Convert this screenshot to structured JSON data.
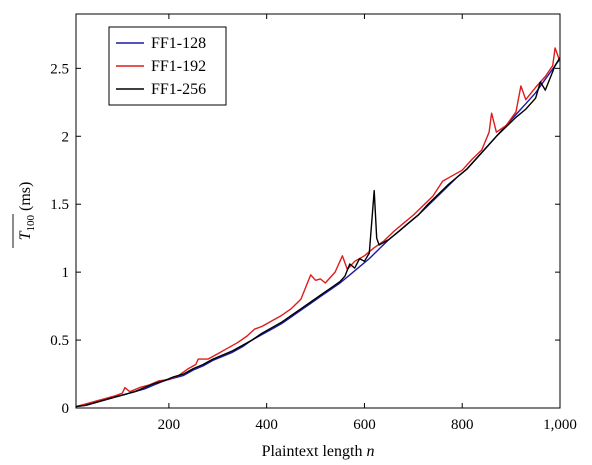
{
  "chart_data": {
    "type": "line",
    "xlabel": "Plaintext length",
    "xlabel_var": "n",
    "ylabel_main": "T",
    "ylabel_sub": "100",
    "ylabel_unit": "(ms)",
    "xlim": [
      10,
      1000
    ],
    "ylim": [
      0,
      2.9
    ],
    "xticks": [
      200,
      400,
      600,
      800,
      1000
    ],
    "xtick_labels": [
      "200",
      "400",
      "600",
      "800",
      "1,000"
    ],
    "yticks": [
      0,
      0.5,
      1,
      1.5,
      2,
      2.5
    ],
    "ytick_labels": [
      "0",
      "0.5",
      "1",
      "1.5",
      "2",
      "2.5"
    ],
    "legend_position": "top-left",
    "series": [
      {
        "name": "FF1-128",
        "color": "#1a1aa6",
        "points": [
          [
            10,
            0.01
          ],
          [
            30,
            0.02
          ],
          [
            50,
            0.04
          ],
          [
            70,
            0.06
          ],
          [
            90,
            0.08
          ],
          [
            110,
            0.1
          ],
          [
            130,
            0.12
          ],
          [
            150,
            0.14
          ],
          [
            170,
            0.17
          ],
          [
            190,
            0.2
          ],
          [
            210,
            0.22
          ],
          [
            230,
            0.24
          ],
          [
            250,
            0.28
          ],
          [
            270,
            0.31
          ],
          [
            290,
            0.35
          ],
          [
            310,
            0.38
          ],
          [
            330,
            0.41
          ],
          [
            350,
            0.45
          ],
          [
            370,
            0.5
          ],
          [
            390,
            0.54
          ],
          [
            410,
            0.58
          ],
          [
            430,
            0.62
          ],
          [
            450,
            0.67
          ],
          [
            470,
            0.72
          ],
          [
            490,
            0.77
          ],
          [
            510,
            0.82
          ],
          [
            530,
            0.87
          ],
          [
            550,
            0.92
          ],
          [
            570,
            0.98
          ],
          [
            590,
            1.04
          ],
          [
            610,
            1.1
          ],
          [
            630,
            1.17
          ],
          [
            650,
            1.24
          ],
          [
            670,
            1.3
          ],
          [
            690,
            1.36
          ],
          [
            710,
            1.42
          ],
          [
            730,
            1.49
          ],
          [
            750,
            1.56
          ],
          [
            770,
            1.63
          ],
          [
            790,
            1.7
          ],
          [
            810,
            1.76
          ],
          [
            830,
            1.84
          ],
          [
            850,
            1.92
          ],
          [
            870,
            2.0
          ],
          [
            890,
            2.08
          ],
          [
            910,
            2.16
          ],
          [
            930,
            2.24
          ],
          [
            950,
            2.32
          ],
          [
            970,
            2.42
          ],
          [
            990,
            2.52
          ],
          [
            1000,
            2.57
          ]
        ]
      },
      {
        "name": "FF1-192",
        "color": "#e01b1b",
        "points": [
          [
            10,
            0.01
          ],
          [
            30,
            0.03
          ],
          [
            50,
            0.05
          ],
          [
            70,
            0.07
          ],
          [
            90,
            0.09
          ],
          [
            105,
            0.11
          ],
          [
            110,
            0.15
          ],
          [
            120,
            0.12
          ],
          [
            140,
            0.15
          ],
          [
            160,
            0.17
          ],
          [
            180,
            0.2
          ],
          [
            200,
            0.21
          ],
          [
            220,
            0.24
          ],
          [
            240,
            0.29
          ],
          [
            255,
            0.32
          ],
          [
            260,
            0.36
          ],
          [
            280,
            0.36
          ],
          [
            300,
            0.4
          ],
          [
            320,
            0.44
          ],
          [
            340,
            0.48
          ],
          [
            360,
            0.53
          ],
          [
            375,
            0.58
          ],
          [
            390,
            0.6
          ],
          [
            410,
            0.64
          ],
          [
            430,
            0.68
          ],
          [
            450,
            0.73
          ],
          [
            470,
            0.8
          ],
          [
            490,
            0.98
          ],
          [
            500,
            0.94
          ],
          [
            510,
            0.95
          ],
          [
            520,
            0.92
          ],
          [
            540,
            1.0
          ],
          [
            555,
            1.12
          ],
          [
            565,
            1.02
          ],
          [
            580,
            1.08
          ],
          [
            600,
            1.12
          ],
          [
            620,
            1.18
          ],
          [
            640,
            1.23
          ],
          [
            660,
            1.3
          ],
          [
            680,
            1.36
          ],
          [
            700,
            1.42
          ],
          [
            720,
            1.49
          ],
          [
            740,
            1.56
          ],
          [
            760,
            1.67
          ],
          [
            780,
            1.71
          ],
          [
            800,
            1.75
          ],
          [
            820,
            1.83
          ],
          [
            840,
            1.9
          ],
          [
            855,
            2.03
          ],
          [
            860,
            2.17
          ],
          [
            870,
            2.03
          ],
          [
            890,
            2.08
          ],
          [
            910,
            2.18
          ],
          [
            920,
            2.37
          ],
          [
            930,
            2.27
          ],
          [
            950,
            2.36
          ],
          [
            970,
            2.44
          ],
          [
            985,
            2.52
          ],
          [
            990,
            2.65
          ],
          [
            1000,
            2.55
          ]
        ]
      },
      {
        "name": "FF1-256",
        "color": "#000000",
        "points": [
          [
            10,
            0.01
          ],
          [
            30,
            0.02
          ],
          [
            50,
            0.04
          ],
          [
            70,
            0.06
          ],
          [
            90,
            0.08
          ],
          [
            110,
            0.1
          ],
          [
            130,
            0.12
          ],
          [
            150,
            0.15
          ],
          [
            170,
            0.18
          ],
          [
            190,
            0.2
          ],
          [
            210,
            0.23
          ],
          [
            230,
            0.25
          ],
          [
            250,
            0.29
          ],
          [
            270,
            0.32
          ],
          [
            290,
            0.36
          ],
          [
            310,
            0.39
          ],
          [
            330,
            0.42
          ],
          [
            350,
            0.46
          ],
          [
            370,
            0.5
          ],
          [
            390,
            0.55
          ],
          [
            410,
            0.59
          ],
          [
            430,
            0.63
          ],
          [
            450,
            0.68
          ],
          [
            470,
            0.73
          ],
          [
            490,
            0.78
          ],
          [
            510,
            0.83
          ],
          [
            530,
            0.88
          ],
          [
            550,
            0.93
          ],
          [
            560,
            0.97
          ],
          [
            570,
            1.06
          ],
          [
            580,
            1.03
          ],
          [
            590,
            1.1
          ],
          [
            600,
            1.08
          ],
          [
            610,
            1.14
          ],
          [
            620,
            1.6
          ],
          [
            625,
            1.25
          ],
          [
            630,
            1.2
          ],
          [
            650,
            1.24
          ],
          [
            670,
            1.3
          ],
          [
            690,
            1.36
          ],
          [
            710,
            1.42
          ],
          [
            730,
            1.5
          ],
          [
            750,
            1.57
          ],
          [
            770,
            1.64
          ],
          [
            790,
            1.7
          ],
          [
            810,
            1.76
          ],
          [
            830,
            1.84
          ],
          [
            850,
            1.92
          ],
          [
            870,
            2.0
          ],
          [
            890,
            2.07
          ],
          [
            910,
            2.14
          ],
          [
            930,
            2.2
          ],
          [
            950,
            2.28
          ],
          [
            960,
            2.4
          ],
          [
            970,
            2.34
          ],
          [
            990,
            2.52
          ],
          [
            1000,
            2.58
          ]
        ]
      }
    ]
  }
}
